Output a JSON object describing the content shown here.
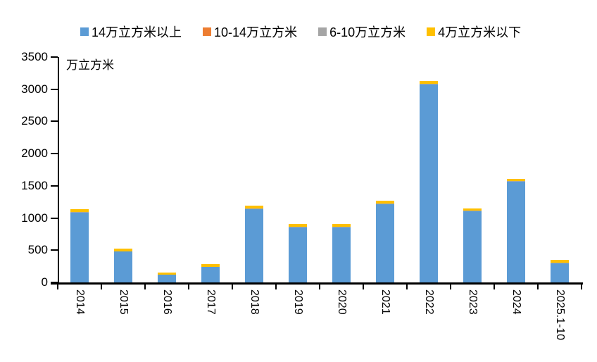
{
  "chart_data": {
    "type": "bar",
    "stacked": true,
    "title": "",
    "unit_label": "万立方米",
    "xlabel": "",
    "ylabel": "万立方米",
    "ylim": [
      0,
      3500
    ],
    "yticks": [
      0,
      500,
      1000,
      1500,
      2000,
      2500,
      3000,
      3500
    ],
    "grid": false,
    "legend_position": "top",
    "categories": [
      "2014",
      "2015",
      "2016",
      "2017",
      "2018",
      "2019",
      "2020",
      "2021",
      "2022",
      "2023",
      "2024",
      "2025.1-10"
    ],
    "series": [
      {
        "name": "14万立方米以上",
        "color": "#5B9BD5",
        "values": [
          1090,
          485,
          125,
          245,
          1140,
          855,
          855,
          1220,
          3080,
          1110,
          1560,
          300
        ]
      },
      {
        "name": "10-14万立方米",
        "color": "#ED7D31",
        "values": [
          0,
          0,
          0,
          0,
          0,
          0,
          0,
          0,
          0,
          0,
          0,
          0
        ]
      },
      {
        "name": "6-10万立方米",
        "color": "#A5A5A5",
        "values": [
          5,
          0,
          0,
          0,
          10,
          10,
          10,
          10,
          5,
          5,
          10,
          5
        ]
      },
      {
        "name": "4万立方米以下",
        "color": "#FFC000",
        "values": [
          40,
          40,
          30,
          35,
          40,
          40,
          40,
          40,
          40,
          35,
          40,
          50
        ]
      }
    ],
    "totals": [
      1135,
      525,
      155,
      280,
      1190,
      905,
      905,
      1270,
      3125,
      1150,
      1610,
      355
    ]
  },
  "colors": {
    "axis": "#000000",
    "background": "#ffffff"
  }
}
